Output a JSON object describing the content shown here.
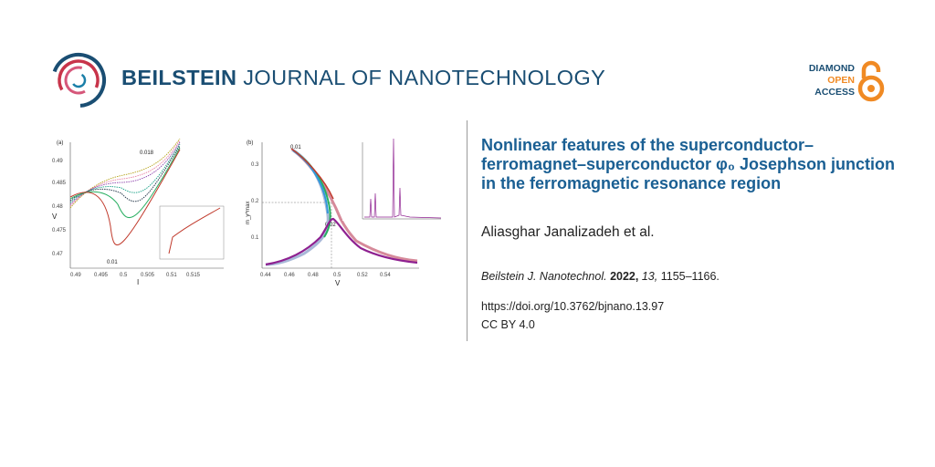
{
  "journal": {
    "name_bold": "BEILSTEIN",
    "name_rest": "JOURNAL OF NANOTECHNOLOGY",
    "logo_icon": "beilstein-rings-icon",
    "colors": {
      "navy": "#1a4e73",
      "orange": "#f08a24",
      "title_blue": "#1a5f93"
    }
  },
  "open_access": {
    "line1": "DIAMOND",
    "line2": "OPEN",
    "line3": "ACCESS",
    "icon": "open-lock-icon"
  },
  "figure": {
    "a": {
      "panel_label": "(a)",
      "xlabel": "I",
      "ylabel": "V",
      "xticks": [
        "0.49",
        "0.495",
        "0.5",
        "0.505",
        "0.51",
        "0.515"
      ],
      "yticks": [
        "0.49",
        "0.485",
        "0.48",
        "0.475",
        "0.47"
      ],
      "annotation_top": "0.018",
      "annotation_bottom": "0.01"
    },
    "b": {
      "panel_label": "(b)",
      "xlabel": "V",
      "ylabel": "m_y^max",
      "xticks": [
        "0.44",
        "0.46",
        "0.48",
        "0.5",
        "0.52",
        "0.54"
      ],
      "yticks": [
        "0.3",
        "0.2",
        "0.1"
      ],
      "annotation_top": "0.01",
      "annotation_bottom": "0.02"
    }
  },
  "article": {
    "title": "Nonlinear features of the superconductor–ferromagnet–superconduc­tor φ₀ Josephson junction in the ferromag­netic resonance region",
    "authors": "Aliasghar Janalizadeh et al.",
    "citation_journal": "Beilstein J. Nanotechnol.",
    "citation_year": "2022,",
    "citation_volume": "13,",
    "citation_pages": "1155–1166.",
    "doi": "https://doi.org/10.3762/bjnano.13.97",
    "license": "CC BY 4.0"
  }
}
